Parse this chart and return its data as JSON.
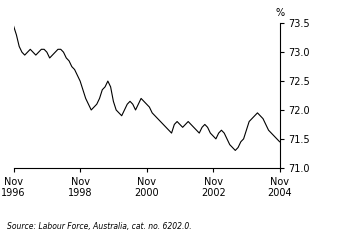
{
  "title": "",
  "ylabel": "%",
  "source": "Source: Labour Force, Australia, cat. no. 6202.0.",
  "ylim": [
    71.0,
    73.5
  ],
  "yticks": [
    71.0,
    71.5,
    72.0,
    72.5,
    73.0,
    73.5
  ],
  "xtick_years": [
    1996,
    1998,
    2000,
    2002,
    2004
  ],
  "line_color": "#000000",
  "line_width": 0.8,
  "background_color": "#ffffff",
  "data_points": [
    [
      1996,
      11,
      73.45
    ],
    [
      1996,
      12,
      73.3
    ],
    [
      1997,
      1,
      73.1
    ],
    [
      1997,
      2,
      73.0
    ],
    [
      1997,
      3,
      72.95
    ],
    [
      1997,
      4,
      73.0
    ],
    [
      1997,
      5,
      73.05
    ],
    [
      1997,
      6,
      73.0
    ],
    [
      1997,
      7,
      72.95
    ],
    [
      1997,
      8,
      73.0
    ],
    [
      1997,
      9,
      73.05
    ],
    [
      1997,
      10,
      73.05
    ],
    [
      1997,
      11,
      73.0
    ],
    [
      1997,
      12,
      72.9
    ],
    [
      1998,
      1,
      72.95
    ],
    [
      1998,
      2,
      73.0
    ],
    [
      1998,
      3,
      73.05
    ],
    [
      1998,
      4,
      73.05
    ],
    [
      1998,
      5,
      73.0
    ],
    [
      1998,
      6,
      72.9
    ],
    [
      1998,
      7,
      72.85
    ],
    [
      1998,
      8,
      72.75
    ],
    [
      1998,
      9,
      72.7
    ],
    [
      1998,
      10,
      72.6
    ],
    [
      1998,
      11,
      72.5
    ],
    [
      1998,
      12,
      72.35
    ],
    [
      1999,
      1,
      72.2
    ],
    [
      1999,
      2,
      72.1
    ],
    [
      1999,
      3,
      72.0
    ],
    [
      1999,
      4,
      72.05
    ],
    [
      1999,
      5,
      72.1
    ],
    [
      1999,
      6,
      72.2
    ],
    [
      1999,
      7,
      72.35
    ],
    [
      1999,
      8,
      72.4
    ],
    [
      1999,
      9,
      72.5
    ],
    [
      1999,
      10,
      72.4
    ],
    [
      1999,
      11,
      72.15
    ],
    [
      1999,
      12,
      72.0
    ],
    [
      2000,
      1,
      71.95
    ],
    [
      2000,
      2,
      71.9
    ],
    [
      2000,
      3,
      72.0
    ],
    [
      2000,
      4,
      72.1
    ],
    [
      2000,
      5,
      72.15
    ],
    [
      2000,
      6,
      72.1
    ],
    [
      2000,
      7,
      72.0
    ],
    [
      2000,
      8,
      72.1
    ],
    [
      2000,
      9,
      72.2
    ],
    [
      2000,
      10,
      72.15
    ],
    [
      2000,
      11,
      72.1
    ],
    [
      2000,
      12,
      72.05
    ],
    [
      2001,
      1,
      71.95
    ],
    [
      2001,
      2,
      71.9
    ],
    [
      2001,
      3,
      71.85
    ],
    [
      2001,
      4,
      71.8
    ],
    [
      2001,
      5,
      71.75
    ],
    [
      2001,
      6,
      71.7
    ],
    [
      2001,
      7,
      71.65
    ],
    [
      2001,
      8,
      71.6
    ],
    [
      2001,
      9,
      71.75
    ],
    [
      2001,
      10,
      71.8
    ],
    [
      2001,
      11,
      71.75
    ],
    [
      2001,
      12,
      71.7
    ],
    [
      2002,
      1,
      71.75
    ],
    [
      2002,
      2,
      71.8
    ],
    [
      2002,
      3,
      71.75
    ],
    [
      2002,
      4,
      71.7
    ],
    [
      2002,
      5,
      71.65
    ],
    [
      2002,
      6,
      71.6
    ],
    [
      2002,
      7,
      71.7
    ],
    [
      2002,
      8,
      71.75
    ],
    [
      2002,
      9,
      71.7
    ],
    [
      2002,
      10,
      71.6
    ],
    [
      2002,
      11,
      71.55
    ],
    [
      2002,
      12,
      71.5
    ],
    [
      2003,
      1,
      71.6
    ],
    [
      2003,
      2,
      71.65
    ],
    [
      2003,
      3,
      71.6
    ],
    [
      2003,
      4,
      71.5
    ],
    [
      2003,
      5,
      71.4
    ],
    [
      2003,
      6,
      71.35
    ],
    [
      2003,
      7,
      71.3
    ],
    [
      2003,
      8,
      71.35
    ],
    [
      2003,
      9,
      71.45
    ],
    [
      2003,
      10,
      71.5
    ],
    [
      2003,
      11,
      71.65
    ],
    [
      2003,
      12,
      71.8
    ],
    [
      2004,
      1,
      71.85
    ],
    [
      2004,
      2,
      71.9
    ],
    [
      2004,
      3,
      71.95
    ],
    [
      2004,
      4,
      71.9
    ],
    [
      2004,
      5,
      71.85
    ],
    [
      2004,
      6,
      71.75
    ],
    [
      2004,
      7,
      71.65
    ],
    [
      2004,
      8,
      71.6
    ],
    [
      2004,
      9,
      71.55
    ],
    [
      2004,
      10,
      71.5
    ],
    [
      2004,
      11,
      71.45
    ]
  ]
}
